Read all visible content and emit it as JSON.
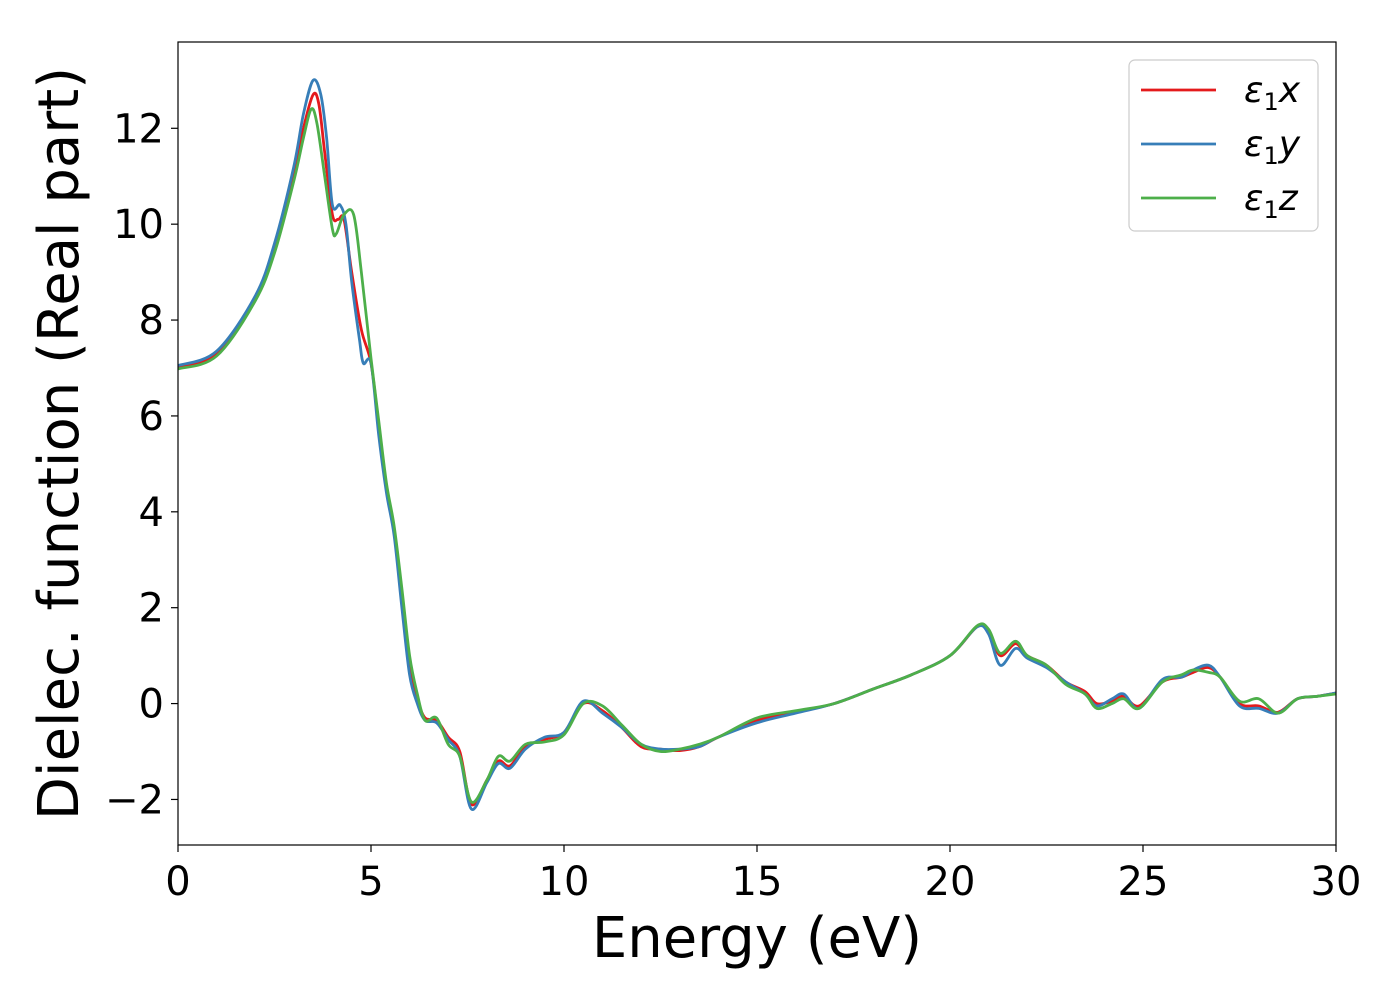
{
  "chart_data": {
    "type": "line",
    "xlabel": "Energy (eV)",
    "ylabel": "Dielec. function (Real part)",
    "xlim": [
      0,
      30
    ],
    "ylim": [
      -2.95,
      13.8
    ],
    "xticks": [
      0,
      5,
      10,
      15,
      20,
      25,
      30
    ],
    "yticks": [
      -2,
      0,
      2,
      4,
      6,
      8,
      10,
      12
    ],
    "grid": false,
    "legend_position": "top-right",
    "series": [
      {
        "name_base": "ε",
        "name_sub": "1",
        "name_suffix": "x",
        "color": "#e41a1c",
        "points": [
          [
            0,
            7.02
          ],
          [
            1,
            7.3
          ],
          [
            2,
            8.45
          ],
          [
            2.5,
            9.5
          ],
          [
            3,
            11.0
          ],
          [
            3.25,
            12.0
          ],
          [
            3.5,
            12.7
          ],
          [
            3.65,
            12.5
          ],
          [
            3.8,
            11.5
          ],
          [
            4.0,
            10.2
          ],
          [
            4.15,
            10.1
          ],
          [
            4.3,
            10.1
          ],
          [
            4.5,
            9.0
          ],
          [
            4.75,
            7.8
          ],
          [
            5.0,
            7.1
          ],
          [
            5.2,
            5.8
          ],
          [
            5.4,
            4.5
          ],
          [
            5.6,
            3.6
          ],
          [
            5.8,
            2.2
          ],
          [
            6.0,
            0.8
          ],
          [
            6.2,
            0.1
          ],
          [
            6.4,
            -0.3
          ],
          [
            6.7,
            -0.35
          ],
          [
            7.0,
            -0.7
          ],
          [
            7.3,
            -1.0
          ],
          [
            7.6,
            -2.1
          ],
          [
            8.0,
            -1.6
          ],
          [
            8.3,
            -1.2
          ],
          [
            8.6,
            -1.3
          ],
          [
            9.0,
            -0.9
          ],
          [
            9.5,
            -0.75
          ],
          [
            10.0,
            -0.6
          ],
          [
            10.5,
            0.0
          ],
          [
            11.0,
            -0.15
          ],
          [
            11.5,
            -0.5
          ],
          [
            12.0,
            -0.9
          ],
          [
            12.5,
            -0.95
          ],
          [
            13.0,
            -0.98
          ],
          [
            13.5,
            -0.9
          ],
          [
            14.0,
            -0.7
          ],
          [
            15.0,
            -0.35
          ],
          [
            16.0,
            -0.18
          ],
          [
            17.0,
            0.0
          ],
          [
            18.0,
            0.3
          ],
          [
            19.0,
            0.6
          ],
          [
            20.0,
            1.0
          ],
          [
            20.7,
            1.6
          ],
          [
            21.0,
            1.5
          ],
          [
            21.3,
            1.0
          ],
          [
            21.7,
            1.25
          ],
          [
            22.0,
            1.0
          ],
          [
            22.5,
            0.8
          ],
          [
            23.0,
            0.45
          ],
          [
            23.5,
            0.25
          ],
          [
            23.8,
            0.0
          ],
          [
            24.2,
            0.05
          ],
          [
            24.5,
            0.15
          ],
          [
            24.9,
            -0.05
          ],
          [
            25.5,
            0.45
          ],
          [
            26.0,
            0.55
          ],
          [
            26.3,
            0.65
          ],
          [
            26.7,
            0.75
          ],
          [
            27.0,
            0.55
          ],
          [
            27.5,
            0.0
          ],
          [
            28.0,
            -0.05
          ],
          [
            28.5,
            -0.18
          ],
          [
            29.0,
            0.1
          ],
          [
            29.5,
            0.15
          ],
          [
            30.0,
            0.22
          ]
        ]
      },
      {
        "name_base": "ε",
        "name_sub": "1",
        "name_suffix": "y",
        "color": "#377eb8",
        "points": [
          [
            0,
            7.05
          ],
          [
            1,
            7.35
          ],
          [
            2,
            8.5
          ],
          [
            2.5,
            9.6
          ],
          [
            3,
            11.2
          ],
          [
            3.25,
            12.3
          ],
          [
            3.5,
            13.0
          ],
          [
            3.7,
            12.7
          ],
          [
            3.85,
            11.8
          ],
          [
            4.0,
            10.4
          ],
          [
            4.2,
            10.4
          ],
          [
            4.35,
            10.0
          ],
          [
            4.5,
            8.8
          ],
          [
            4.7,
            7.6
          ],
          [
            4.8,
            7.1
          ],
          [
            5.0,
            7.1
          ],
          [
            5.2,
            5.6
          ],
          [
            5.4,
            4.4
          ],
          [
            5.6,
            3.5
          ],
          [
            5.8,
            2.0
          ],
          [
            6.0,
            0.6
          ],
          [
            6.2,
            0.0
          ],
          [
            6.4,
            -0.35
          ],
          [
            6.7,
            -0.4
          ],
          [
            7.0,
            -0.75
          ],
          [
            7.3,
            -1.1
          ],
          [
            7.6,
            -2.2
          ],
          [
            8.0,
            -1.65
          ],
          [
            8.3,
            -1.25
          ],
          [
            8.6,
            -1.35
          ],
          [
            9.0,
            -0.95
          ],
          [
            9.5,
            -0.7
          ],
          [
            10.0,
            -0.6
          ],
          [
            10.5,
            0.05
          ],
          [
            11.0,
            -0.2
          ],
          [
            11.5,
            -0.5
          ],
          [
            12.0,
            -0.85
          ],
          [
            12.5,
            -0.95
          ],
          [
            13.0,
            -0.95
          ],
          [
            13.5,
            -0.9
          ],
          [
            14.0,
            -0.7
          ],
          [
            15.0,
            -0.4
          ],
          [
            16.0,
            -0.2
          ],
          [
            17.0,
            0.0
          ],
          [
            18.0,
            0.3
          ],
          [
            19.0,
            0.6
          ],
          [
            20.0,
            1.0
          ],
          [
            20.7,
            1.6
          ],
          [
            21.0,
            1.45
          ],
          [
            21.3,
            0.8
          ],
          [
            21.7,
            1.15
          ],
          [
            22.0,
            0.95
          ],
          [
            22.5,
            0.75
          ],
          [
            23.0,
            0.45
          ],
          [
            23.5,
            0.2
          ],
          [
            23.8,
            -0.05
          ],
          [
            24.2,
            0.1
          ],
          [
            24.5,
            0.2
          ],
          [
            24.9,
            -0.1
          ],
          [
            25.5,
            0.5
          ],
          [
            26.0,
            0.55
          ],
          [
            26.3,
            0.7
          ],
          [
            26.7,
            0.8
          ],
          [
            27.0,
            0.55
          ],
          [
            27.5,
            -0.05
          ],
          [
            28.0,
            -0.1
          ],
          [
            28.5,
            -0.2
          ],
          [
            29.0,
            0.1
          ],
          [
            29.5,
            0.15
          ],
          [
            30.0,
            0.22
          ]
        ]
      },
      {
        "name_base": "ε",
        "name_sub": "1",
        "name_suffix": "z",
        "color": "#4daf4a",
        "points": [
          [
            0,
            6.98
          ],
          [
            1,
            7.25
          ],
          [
            2,
            8.4
          ],
          [
            2.5,
            9.4
          ],
          [
            3,
            10.9
          ],
          [
            3.25,
            11.8
          ],
          [
            3.45,
            12.4
          ],
          [
            3.6,
            12.1
          ],
          [
            3.8,
            11.0
          ],
          [
            4.0,
            9.9
          ],
          [
            4.1,
            9.8
          ],
          [
            4.3,
            10.2
          ],
          [
            4.55,
            10.2
          ],
          [
            4.75,
            9.0
          ],
          [
            5.0,
            7.2
          ],
          [
            5.2,
            5.9
          ],
          [
            5.4,
            4.6
          ],
          [
            5.6,
            3.7
          ],
          [
            5.8,
            2.4
          ],
          [
            6.0,
            1.0
          ],
          [
            6.2,
            0.2
          ],
          [
            6.4,
            -0.35
          ],
          [
            6.7,
            -0.3
          ],
          [
            7.0,
            -0.85
          ],
          [
            7.3,
            -1.1
          ],
          [
            7.6,
            -2.05
          ],
          [
            8.0,
            -1.6
          ],
          [
            8.3,
            -1.1
          ],
          [
            8.6,
            -1.2
          ],
          [
            9.0,
            -0.85
          ],
          [
            9.5,
            -0.8
          ],
          [
            10.0,
            -0.65
          ],
          [
            10.5,
            0.0
          ],
          [
            11.0,
            -0.05
          ],
          [
            11.5,
            -0.45
          ],
          [
            12.0,
            -0.85
          ],
          [
            12.5,
            -1.0
          ],
          [
            13.0,
            -0.95
          ],
          [
            13.5,
            -0.85
          ],
          [
            14.0,
            -0.7
          ],
          [
            15.0,
            -0.3
          ],
          [
            16.0,
            -0.15
          ],
          [
            17.0,
            0.0
          ],
          [
            18.0,
            0.3
          ],
          [
            19.0,
            0.6
          ],
          [
            20.0,
            1.0
          ],
          [
            20.7,
            1.62
          ],
          [
            21.0,
            1.55
          ],
          [
            21.3,
            1.05
          ],
          [
            21.7,
            1.3
          ],
          [
            22.0,
            1.0
          ],
          [
            22.5,
            0.8
          ],
          [
            23.0,
            0.4
          ],
          [
            23.5,
            0.2
          ],
          [
            23.8,
            -0.1
          ],
          [
            24.2,
            0.0
          ],
          [
            24.5,
            0.1
          ],
          [
            24.9,
            -0.1
          ],
          [
            25.5,
            0.45
          ],
          [
            26.0,
            0.6
          ],
          [
            26.3,
            0.7
          ],
          [
            26.7,
            0.65
          ],
          [
            27.0,
            0.55
          ],
          [
            27.5,
            0.05
          ],
          [
            28.0,
            0.1
          ],
          [
            28.5,
            -0.2
          ],
          [
            29.0,
            0.1
          ],
          [
            29.5,
            0.15
          ],
          [
            30.0,
            0.2
          ]
        ]
      }
    ]
  }
}
